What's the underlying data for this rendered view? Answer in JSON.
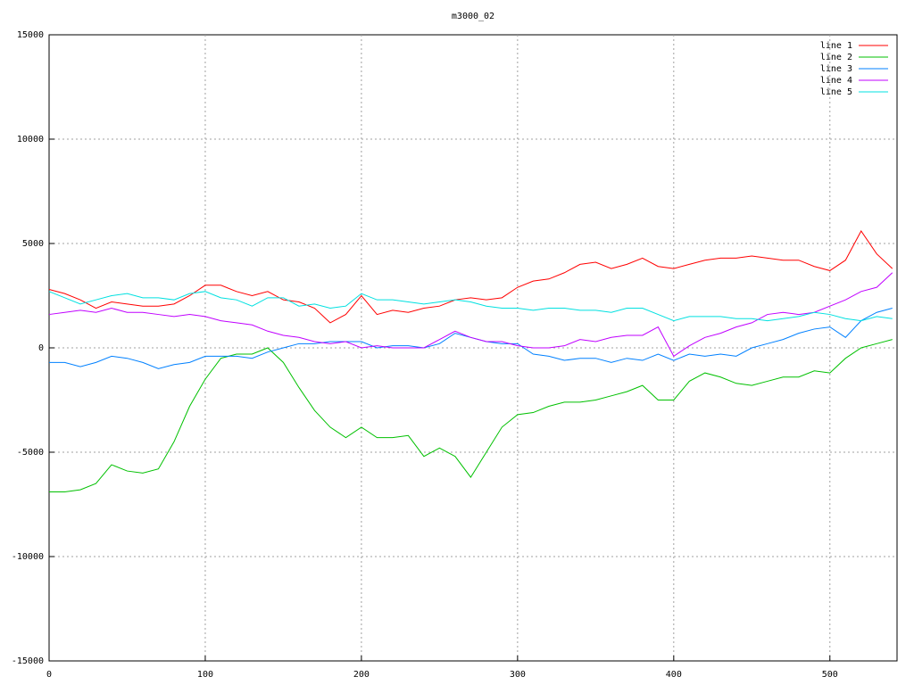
{
  "chart_data": {
    "type": "line",
    "title": "m3000_02",
    "x": [
      0,
      10,
      20,
      30,
      40,
      50,
      60,
      70,
      80,
      90,
      100,
      110,
      120,
      130,
      140,
      150,
      160,
      170,
      180,
      190,
      200,
      210,
      220,
      230,
      240,
      250,
      260,
      270,
      280,
      290,
      300,
      310,
      320,
      330,
      340,
      350,
      360,
      370,
      380,
      390,
      400,
      410,
      420,
      430,
      440,
      450,
      460,
      470,
      480,
      490,
      500,
      510,
      520,
      530,
      540
    ],
    "series": [
      {
        "name": "line 1",
        "color": "#ff0000",
        "values": [
          2800,
          2600,
          2300,
          1900,
          2200,
          2100,
          2000,
          2000,
          2100,
          2500,
          3000,
          3000,
          2700,
          2500,
          2700,
          2300,
          2200,
          1900,
          1200,
          1600,
          2500,
          1600,
          1800,
          1700,
          1900,
          2000,
          2300,
          2400,
          2300,
          2400,
          2900,
          3200,
          3300,
          3600,
          4000,
          4100,
          3800,
          4000,
          4300,
          3900,
          3800,
          4000,
          4200,
          4300,
          4300,
          4400,
          4300,
          4200,
          4200,
          3900,
          3700,
          4200,
          5600,
          4500,
          3800
        ]
      },
      {
        "name": "line 2",
        "color": "#00c000",
        "values": [
          -6900,
          -6900,
          -6800,
          -6500,
          -5600,
          -5900,
          -6000,
          -5800,
          -4500,
          -2800,
          -1500,
          -500,
          -300,
          -300,
          0,
          -700,
          -1900,
          -3000,
          -3800,
          -4300,
          -3800,
          -4300,
          -4300,
          -4200,
          -5200,
          -4800,
          -5200,
          -6200,
          -5000,
          -3800,
          -3200,
          -3100,
          -2800,
          -2600,
          -2600,
          -2500,
          -2300,
          -2100,
          -1800,
          -2500,
          -2500,
          -1600,
          -1200,
          -1400,
          -1700,
          -1800,
          -1600,
          -1400,
          -1400,
          -1100,
          -1200,
          -500,
          0,
          200,
          400
        ]
      },
      {
        "name": "line 3",
        "color": "#0080ff",
        "values": [
          -700,
          -700,
          -900,
          -700,
          -400,
          -500,
          -700,
          -1000,
          -800,
          -700,
          -400,
          -400,
          -400,
          -500,
          -200,
          0,
          200,
          200,
          300,
          300,
          300,
          0,
          100,
          100,
          0,
          200,
          700,
          500,
          300,
          200,
          200,
          -300,
          -400,
          -600,
          -500,
          -500,
          -700,
          -500,
          -600,
          -300,
          -600,
          -300,
          -400,
          -300,
          -400,
          0,
          200,
          400,
          700,
          900,
          1000,
          500,
          1300,
          1700,
          1900
        ]
      },
      {
        "name": "line 4",
        "color": "#c000ff",
        "values": [
          1600,
          1700,
          1800,
          1700,
          1900,
          1700,
          1700,
          1600,
          1500,
          1600,
          1500,
          1300,
          1200,
          1100,
          800,
          600,
          500,
          300,
          200,
          300,
          0,
          100,
          0,
          0,
          0,
          400,
          800,
          500,
          300,
          300,
          100,
          0,
          0,
          100,
          400,
          300,
          500,
          600,
          600,
          1000,
          -400,
          100,
          500,
          700,
          1000,
          1200,
          1600,
          1700,
          1600,
          1700,
          2000,
          2300,
          2700,
          2900,
          3600
        ]
      },
      {
        "name": "line 5",
        "color": "#00e0e0",
        "values": [
          2700,
          2400,
          2100,
          2300,
          2500,
          2600,
          2400,
          2400,
          2300,
          2600,
          2700,
          2400,
          2300,
          2000,
          2400,
          2400,
          2000,
          2100,
          1900,
          2000,
          2600,
          2300,
          2300,
          2200,
          2100,
          2200,
          2300,
          2200,
          2000,
          1900,
          1900,
          1800,
          1900,
          1900,
          1800,
          1800,
          1700,
          1900,
          1900,
          1600,
          1300,
          1500,
          1500,
          1500,
          1400,
          1400,
          1300,
          1400,
          1500,
          1700,
          1600,
          1400,
          1300,
          1500,
          1400
        ]
      }
    ],
    "xlim": [
      0,
      543
    ],
    "xticks": [
      0,
      100,
      200,
      300,
      400,
      500
    ],
    "ylim": [
      -15000,
      15000
    ],
    "yticks": [
      -15000,
      -10000,
      -5000,
      0,
      5000,
      10000,
      15000
    ],
    "grid": true,
    "legend": "top-right"
  }
}
